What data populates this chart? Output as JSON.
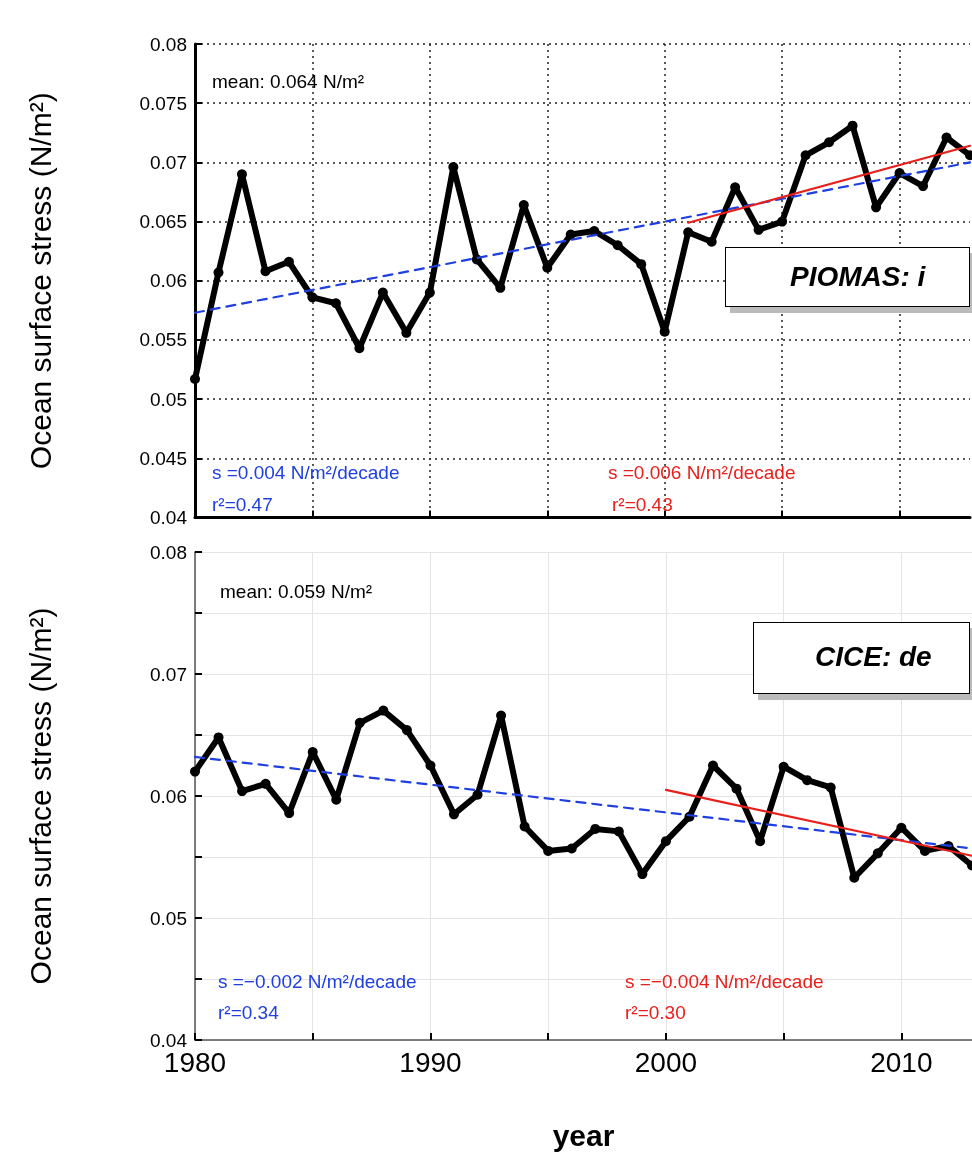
{
  "chart_data": [
    {
      "type": "line",
      "ylabel": "Ocean surface stress (N/m²)",
      "x": [
        1980,
        1981,
        1982,
        1983,
        1984,
        1985,
        1986,
        1987,
        1988,
        1989,
        1990,
        1991,
        1992,
        1993,
        1994,
        1995,
        1996,
        1997,
        1998,
        1999,
        2000,
        2001,
        2002,
        2003,
        2004,
        2005,
        2006,
        2007,
        2008,
        2009,
        2010,
        2011,
        2012,
        2013
      ],
      "series": [
        {
          "color": "#000000",
          "marker": "circle",
          "line_style": "solid",
          "values": [
            0.0517,
            0.0607,
            0.069,
            0.0608,
            0.0616,
            0.0586,
            0.0581,
            0.0543,
            0.059,
            0.0556,
            0.059,
            0.0696,
            0.0618,
            0.0594,
            0.0664,
            0.0611,
            0.0639,
            0.0642,
            0.063,
            0.0614,
            0.0557,
            0.0641,
            0.0633,
            0.0679,
            0.0643,
            0.065,
            0.0706,
            0.0717,
            0.0731,
            0.0662,
            0.0691,
            0.068,
            0.0721,
            0.0706
          ]
        },
        {
          "type": "line",
          "color": "#1f3fe0",
          "marker": "none",
          "line_style": "dashed",
          "x": [
            1980,
            2013
          ],
          "values": [
            0.0573,
            0.07
          ]
        },
        {
          "type": "line",
          "color": "#e8201c",
          "marker": "none",
          "line_style": "solid",
          "x": [
            2001,
            2013
          ],
          "values": [
            0.0649,
            0.0714
          ]
        }
      ],
      "xlim": [
        1980,
        2013
      ],
      "xticks": [
        {
          "value": 1980,
          "label": null
        },
        {
          "value": 1985,
          "label": null
        },
        {
          "value": 1990,
          "label": null
        },
        {
          "value": 1995,
          "label": null
        },
        {
          "value": 2000,
          "label": null
        },
        {
          "value": 2005,
          "label": null
        },
        {
          "value": 2010,
          "label": null
        }
      ],
      "ylim": [
        0.04,
        0.08
      ],
      "yticks": [
        0.04,
        0.045,
        0.05,
        0.055,
        0.06,
        0.065,
        0.07,
        0.075,
        0.08
      ],
      "grid": true,
      "tick_labels": "y",
      "annotations": [
        "mean: 0.064 N/m²",
        "s =0.004 N/m²/decade",
        "r²=0.47",
        "s =0.006 N/m²/decade",
        "r²=0.43",
        "PIOMAS: i"
      ]
    },
    {
      "type": "line",
      "ylabel": "Ocean surface stress (N/m²)",
      "xlabel": "year",
      "x": [
        1980,
        1981,
        1982,
        1983,
        1984,
        1985,
        1986,
        1987,
        1988,
        1989,
        1990,
        1991,
        1992,
        1993,
        1994,
        1995,
        1996,
        1997,
        1998,
        1999,
        2000,
        2001,
        2002,
        2003,
        2004,
        2005,
        2006,
        2007,
        2008,
        2009,
        2010,
        2011,
        2012,
        2013
      ],
      "series": [
        {
          "color": "#000000",
          "marker": "circle",
          "line_style": "solid",
          "values": [
            0.062,
            0.0648,
            0.0604,
            0.061,
            0.0586,
            0.0636,
            0.0597,
            0.066,
            0.067,
            0.0654,
            0.0625,
            0.0585,
            0.0601,
            0.0666,
            0.0575,
            0.0555,
            0.0557,
            0.0573,
            0.0571,
            0.0536,
            0.0563,
            0.0583,
            0.0625,
            0.0606,
            0.0563,
            0.0624,
            0.0613,
            0.0607,
            0.0533,
            0.0553,
            0.0574,
            0.0555,
            0.0559,
            0.0543
          ]
        },
        {
          "type": "line",
          "color": "#1f3fe0",
          "marker": "none",
          "line_style": "dashed",
          "x": [
            1980,
            2013
          ],
          "values": [
            0.0632,
            0.0557
          ]
        },
        {
          "type": "line",
          "color": "#e8201c",
          "marker": "none",
          "line_style": "solid",
          "x": [
            2000,
            2013
          ],
          "values": [
            0.0605,
            0.0551
          ]
        }
      ],
      "xlim": [
        1980,
        2013
      ],
      "xticks": [
        1980,
        {
          "value": 1985,
          "label": null
        },
        1990,
        {
          "value": 1995,
          "label": null
        },
        2000,
        {
          "value": 2005,
          "label": null
        },
        2010
      ],
      "ylim": [
        0.04,
        0.08
      ],
      "yticks": [
        0.04,
        {
          "value": 0.045,
          "label": null
        },
        0.05,
        {
          "value": 0.055,
          "label": null
        },
        0.06,
        {
          "value": 0.065,
          "label": null
        },
        0.07,
        {
          "value": 0.075,
          "label": null
        },
        0.08
      ],
      "grid": true,
      "annotations": [
        "mean: 0.059 N/m²",
        "s =−0.002 N/m²/decade",
        "r²=0.34",
        "s =−0.004 N/m²/decade",
        "r²=0.30",
        "CICE: de"
      ]
    }
  ]
}
